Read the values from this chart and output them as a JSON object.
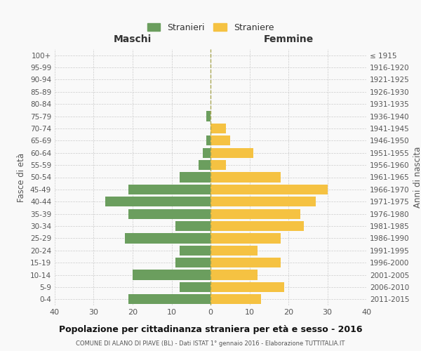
{
  "age_groups": [
    "0-4",
    "5-9",
    "10-14",
    "15-19",
    "20-24",
    "25-29",
    "30-34",
    "35-39",
    "40-44",
    "45-49",
    "50-54",
    "55-59",
    "60-64",
    "65-69",
    "70-74",
    "75-79",
    "80-84",
    "85-89",
    "90-94",
    "95-99",
    "100+"
  ],
  "birth_years": [
    "2011-2015",
    "2006-2010",
    "2001-2005",
    "1996-2000",
    "1991-1995",
    "1986-1990",
    "1981-1985",
    "1976-1980",
    "1971-1975",
    "1966-1970",
    "1961-1965",
    "1956-1960",
    "1951-1955",
    "1946-1950",
    "1941-1945",
    "1936-1940",
    "1931-1935",
    "1926-1930",
    "1921-1925",
    "1916-1920",
    "≤ 1915"
  ],
  "maschi": [
    21,
    8,
    20,
    9,
    8,
    22,
    9,
    21,
    27,
    21,
    8,
    3,
    2,
    1,
    0,
    1,
    0,
    0,
    0,
    0,
    0
  ],
  "femmine": [
    13,
    19,
    12,
    18,
    12,
    18,
    24,
    23,
    27,
    30,
    18,
    4,
    11,
    5,
    4,
    0,
    0,
    0,
    0,
    0,
    0
  ],
  "maschi_color": "#6b9e5e",
  "femmine_color": "#f5c242",
  "title": "Popolazione per cittadinanza straniera per età e sesso - 2016",
  "subtitle": "COMUNE DI ALANO DI PIAVE (BL) - Dati ISTAT 1° gennaio 2016 - Elaborazione TUTTITALIA.IT",
  "xlabel_left": "Maschi",
  "xlabel_right": "Femmine",
  "ylabel_left": "Fasce di età",
  "ylabel_right": "Anni di nascita",
  "legend_stranieri": "Stranieri",
  "legend_straniere": "Straniere",
  "xlim": 40,
  "background_color": "#f9f9f9",
  "grid_color": "#cccccc",
  "bar_height": 0.82
}
